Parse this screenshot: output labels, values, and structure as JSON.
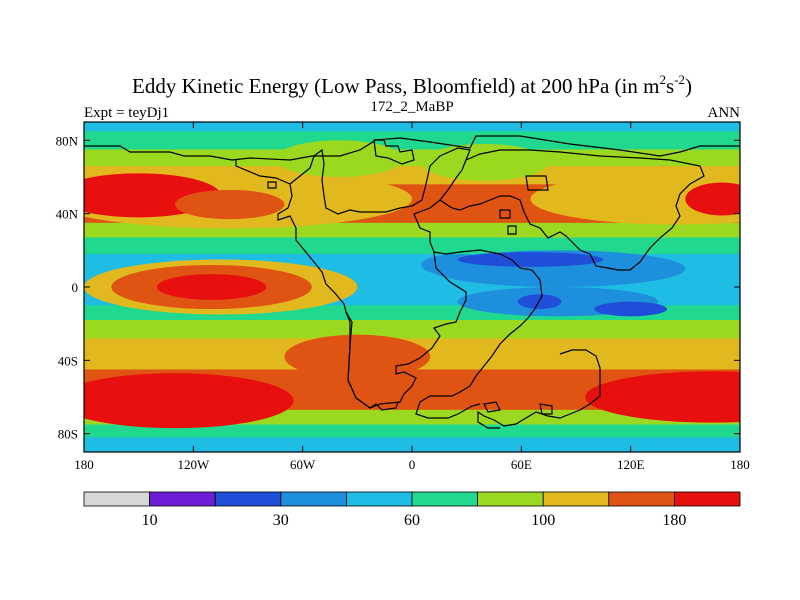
{
  "chart_data": {
    "type": "heatmap",
    "title": "Eddy Kinetic Energy (Low Pass, Bloomfield) at 200 hPa (in m",
    "title_unit_sup1": "2",
    "title_unit_mid": "s",
    "title_unit_sup2": "-2",
    "title_close": ")",
    "left_label": "Expt = teyDj1",
    "center_label": "172_2_MaBP",
    "right_label": "ANN",
    "x_ticks": [
      {
        "lon": -180,
        "label": "180"
      },
      {
        "lon": -120,
        "label": "120W"
      },
      {
        "lon": -60,
        "label": "60W"
      },
      {
        "lon": 0,
        "label": "0"
      },
      {
        "lon": 60,
        "label": "60E"
      },
      {
        "lon": 120,
        "label": "120E"
      },
      {
        "lon": 180,
        "label": "180"
      }
    ],
    "y_ticks": [
      {
        "lat": 80,
        "label": "80N"
      },
      {
        "lat": 40,
        "label": "40N"
      },
      {
        "lat": 0,
        "label": "0"
      },
      {
        "lat": -40,
        "label": "40S"
      },
      {
        "lat": -80,
        "label": "80S"
      }
    ],
    "xlim": [
      -180,
      180
    ],
    "ylim": [
      -90,
      90
    ],
    "levels": [
      0,
      10,
      20,
      30,
      45,
      60,
      80,
      100,
      140,
      180
    ],
    "level_labels": [
      {
        "index": 1,
        "label": "10"
      },
      {
        "index": 3,
        "label": "30"
      },
      {
        "index": 5,
        "label": "60"
      },
      {
        "index": 7,
        "label": "100"
      },
      {
        "index": 9,
        "label": "180"
      }
    ],
    "colors": [
      "#d7d7d7",
      "#6e1fd6",
      "#1f4fd9",
      "#1e8fdc",
      "#1fbde3",
      "#20d98f",
      "#9bd920",
      "#e1b91f",
      "#e05413",
      "#e80f0f"
    ],
    "bands": [
      {
        "lat_from": 90,
        "lat_to": 85,
        "level": 4
      },
      {
        "lat_from": 85,
        "lat_to": 75,
        "level": 5
      },
      {
        "lat_from": 75,
        "lat_to": 66,
        "level": 6
      },
      {
        "lat_from": 66,
        "lat_to": 56,
        "level": 7
      },
      {
        "lat_from": 56,
        "lat_to": 35,
        "level": 8
      },
      {
        "lat_from": 35,
        "lat_to": 27,
        "level": 6
      },
      {
        "lat_from": 27,
        "lat_to": 18,
        "level": 5
      },
      {
        "lat_from": 18,
        "lat_to": 10,
        "level": 4
      },
      {
        "lat_from": 10,
        "lat_to": -10,
        "level": 4
      },
      {
        "lat_from": -10,
        "lat_to": -18,
        "level": 5
      },
      {
        "lat_from": -18,
        "lat_to": -28,
        "level": 6
      },
      {
        "lat_from": -28,
        "lat_to": -45,
        "level": 7
      },
      {
        "lat_from": -45,
        "lat_to": -67,
        "level": 8
      },
      {
        "lat_from": -67,
        "lat_to": -75,
        "level": 6
      },
      {
        "lat_from": -75,
        "lat_to": -82,
        "level": 5
      },
      {
        "lat_from": -82,
        "lat_to": -90,
        "level": 4
      }
    ],
    "blobs": [
      {
        "lon": -100,
        "lat": 48,
        "dlon": 100,
        "dlat": 16,
        "level": 7
      },
      {
        "lon": 145,
        "lat": 48,
        "dlon": 80,
        "dlat": 14,
        "level": 7
      },
      {
        "lon": -40,
        "lat": 70,
        "dlon": 35,
        "dlat": 10,
        "level": 6
      },
      {
        "lon": 40,
        "lat": 68,
        "dlon": 35,
        "dlat": 10,
        "level": 6
      },
      {
        "lon": -150,
        "lat": 50,
        "dlon": 45,
        "dlat": 12,
        "level": 9
      },
      {
        "lon": 170,
        "lat": 48,
        "dlon": 20,
        "dlat": 9,
        "level": 9
      },
      {
        "lon": -100,
        "lat": 45,
        "dlon": 30,
        "dlat": 8,
        "level": 8
      },
      {
        "lon": 80,
        "lat": 10,
        "dlon": 70,
        "dlat": 10,
        "level": 3
      },
      {
        "lon": 80,
        "lat": -8,
        "dlon": 55,
        "dlat": 8,
        "level": 3
      },
      {
        "lon": 25,
        "lat": 12,
        "dlon": 20,
        "dlat": 6,
        "level": 3
      },
      {
        "lon": 65,
        "lat": 15,
        "dlon": 40,
        "dlat": 4,
        "level": 2
      },
      {
        "lon": 70,
        "lat": -8,
        "dlon": 12,
        "dlat": 4,
        "level": 2
      },
      {
        "lon": 120,
        "lat": -12,
        "dlon": 20,
        "dlat": 4,
        "level": 2
      },
      {
        "lon": -105,
        "lat": 0,
        "dlon": 75,
        "dlat": 15,
        "level": 7
      },
      {
        "lon": -110,
        "lat": 0,
        "dlon": 55,
        "dlat": 12,
        "level": 8
      },
      {
        "lon": -110,
        "lat": 0,
        "dlon": 30,
        "dlat": 7,
        "level": 9
      },
      {
        "lon": -130,
        "lat": -62,
        "dlon": 65,
        "dlat": 15,
        "level": 9
      },
      {
        "lon": 165,
        "lat": -60,
        "dlon": 70,
        "dlat": 14,
        "level": 9
      },
      {
        "lon": -30,
        "lat": -38,
        "dlon": 40,
        "dlat": 12,
        "level": 8
      }
    ]
  }
}
